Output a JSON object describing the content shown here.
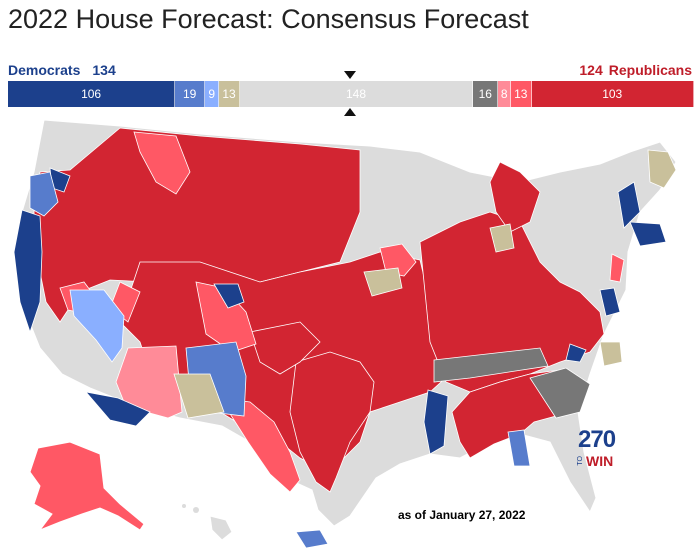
{
  "title": "2022 House Forecast: Consensus Forecast",
  "democrats": {
    "label": "Democrats",
    "total": "134"
  },
  "republicans": {
    "label": "Republicans",
    "total": "124"
  },
  "bar": [
    {
      "rating": "safe-dem",
      "value": 106,
      "color": "#1c408c"
    },
    {
      "rating": "likely-dem",
      "value": 19,
      "color": "#577ccc"
    },
    {
      "rating": "lean-dem",
      "value": 9,
      "color": "#8aafff"
    },
    {
      "rating": "tilt-dem",
      "value": 13,
      "color": "#c9c09b"
    },
    {
      "rating": "tossup",
      "value": 148,
      "color": "#dcdcdc"
    },
    {
      "rating": "tossup-dark",
      "value": 16,
      "color": "#777777"
    },
    {
      "rating": "tilt-rep",
      "value": 8,
      "color": "#ff8b98"
    },
    {
      "rating": "lean-rep",
      "value": 13,
      "color": "#ff5865"
    },
    {
      "rating": "safe-rep",
      "value": 103,
      "color": "#d22532"
    }
  ],
  "as_of": "as of January 27, 2022",
  "logo": {
    "number": "270",
    "to": "TO",
    "win": "WIN"
  },
  "colors": {
    "safe_dem": "#1c408c",
    "likely_dem": "#577ccc",
    "lean_dem": "#8aafff",
    "tan": "#c9c09b",
    "neutral": "#dcdcdc",
    "gray": "#777777",
    "lean_rep": "#ff8b98",
    "likely_rep": "#ff5865",
    "safe_rep": "#d22532"
  }
}
